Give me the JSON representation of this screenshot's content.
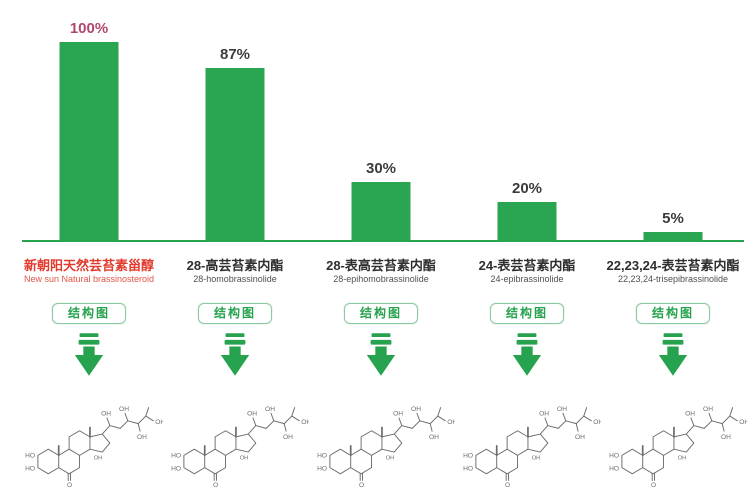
{
  "chart_data": {
    "type": "bar",
    "title": "",
    "categories": [
      "新朝阳天然芸苔素甾醇",
      "28-高芸苔素内酯",
      "28-表高芸苔素内酯",
      "24-表芸苔素内酯",
      "22,23,24-表芸苔素内酯"
    ],
    "categories_en": [
      "New sun Natural brassinosteroid",
      "28-homobrassinolide",
      "28-epihomobrassinolide",
      "24-epibrassinolide",
      "22,23,24-trisepibrassinolide"
    ],
    "values": [
      100,
      87,
      30,
      20,
      5
    ],
    "value_labels": [
      "100%",
      "87%",
      "30%",
      "20%",
      "5%"
    ],
    "unit": "%",
    "ylim": [
      0,
      100
    ],
    "xlabel": "",
    "ylabel": "",
    "grid": false,
    "legend": false,
    "bar_color": "#2aa652",
    "highlight_index": 0,
    "highlight_value_color": "#b0486f"
  },
  "columns": [
    {
      "pct": "100%",
      "value": 100,
      "highlight": true,
      "name_cn": "新朝阳天然芸苔素甾醇",
      "name_en": "New sun Natural brassinosteroid",
      "button_label": "结构图"
    },
    {
      "pct": "87%",
      "value": 87,
      "highlight": false,
      "name_cn": "28-高芸苔素内酯",
      "name_en": "28-homobrassinolide",
      "button_label": "结构图"
    },
    {
      "pct": "30%",
      "value": 30,
      "highlight": false,
      "name_cn": "28-表高芸苔素内酯",
      "name_en": "28-epihomobrassinolide",
      "button_label": "结构图"
    },
    {
      "pct": "20%",
      "value": 20,
      "highlight": false,
      "name_cn": "24-表芸苔素内酯",
      "name_en": "24-epibrassinolide",
      "button_label": "结构图"
    },
    {
      "pct": "5%",
      "value": 5,
      "highlight": false,
      "name_cn": "22,23,24-表芸苔素内酯",
      "name_en": "22,23,24-trisepibrassinolide",
      "button_label": "结构图"
    }
  ],
  "icons": {
    "down_arrow": "double-bar-down-arrow-icon",
    "structure": "steroid-structure-diagram"
  },
  "colors": {
    "green": "#27a24e",
    "bar_green": "#2aa652",
    "highlight_pct": "#b0486f",
    "label_dark": "#3c3c3c",
    "brand_red": "#e23a2c",
    "brand_red_light": "#e25649",
    "structure_gray": "#6b6b6b",
    "button_border": "#8cc8a0"
  }
}
